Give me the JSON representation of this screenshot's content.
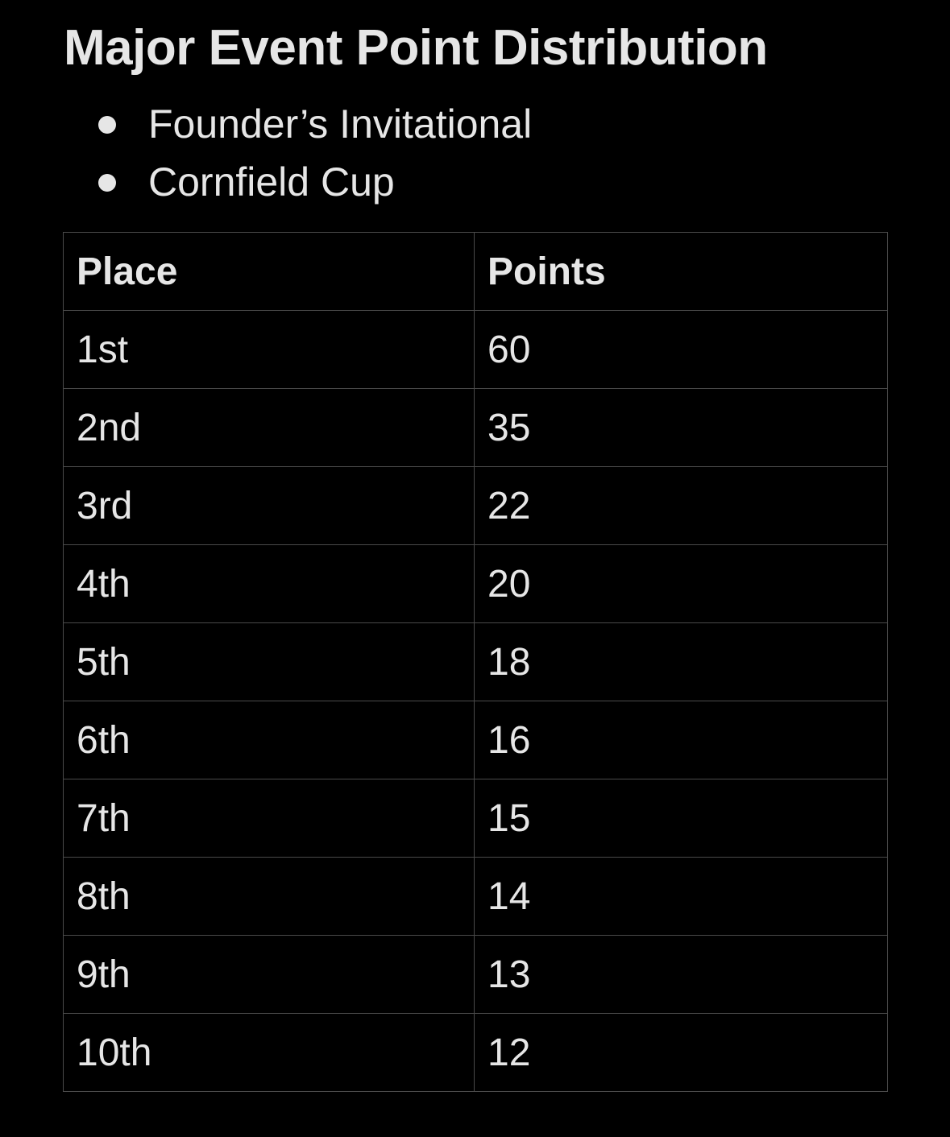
{
  "title": "Major Event Point Distribution",
  "events": [
    "Founder’s Invitational",
    "Cornfield Cup"
  ],
  "table": {
    "headers": {
      "place": "Place",
      "points": "Points"
    },
    "rows": [
      {
        "place": "1st",
        "points": "60"
      },
      {
        "place": "2nd",
        "points": "35"
      },
      {
        "place": "3rd",
        "points": "22"
      },
      {
        "place": "4th",
        "points": "20"
      },
      {
        "place": "5th",
        "points": "18"
      },
      {
        "place": "6th",
        "points": "16"
      },
      {
        "place": "7th",
        "points": "15"
      },
      {
        "place": "8th",
        "points": "14"
      },
      {
        "place": "9th",
        "points": "13"
      },
      {
        "place": "10th",
        "points": "12"
      }
    ]
  },
  "colors": {
    "background": "#000000",
    "text": "#e6e6e6",
    "border": "#4a4a4a"
  }
}
